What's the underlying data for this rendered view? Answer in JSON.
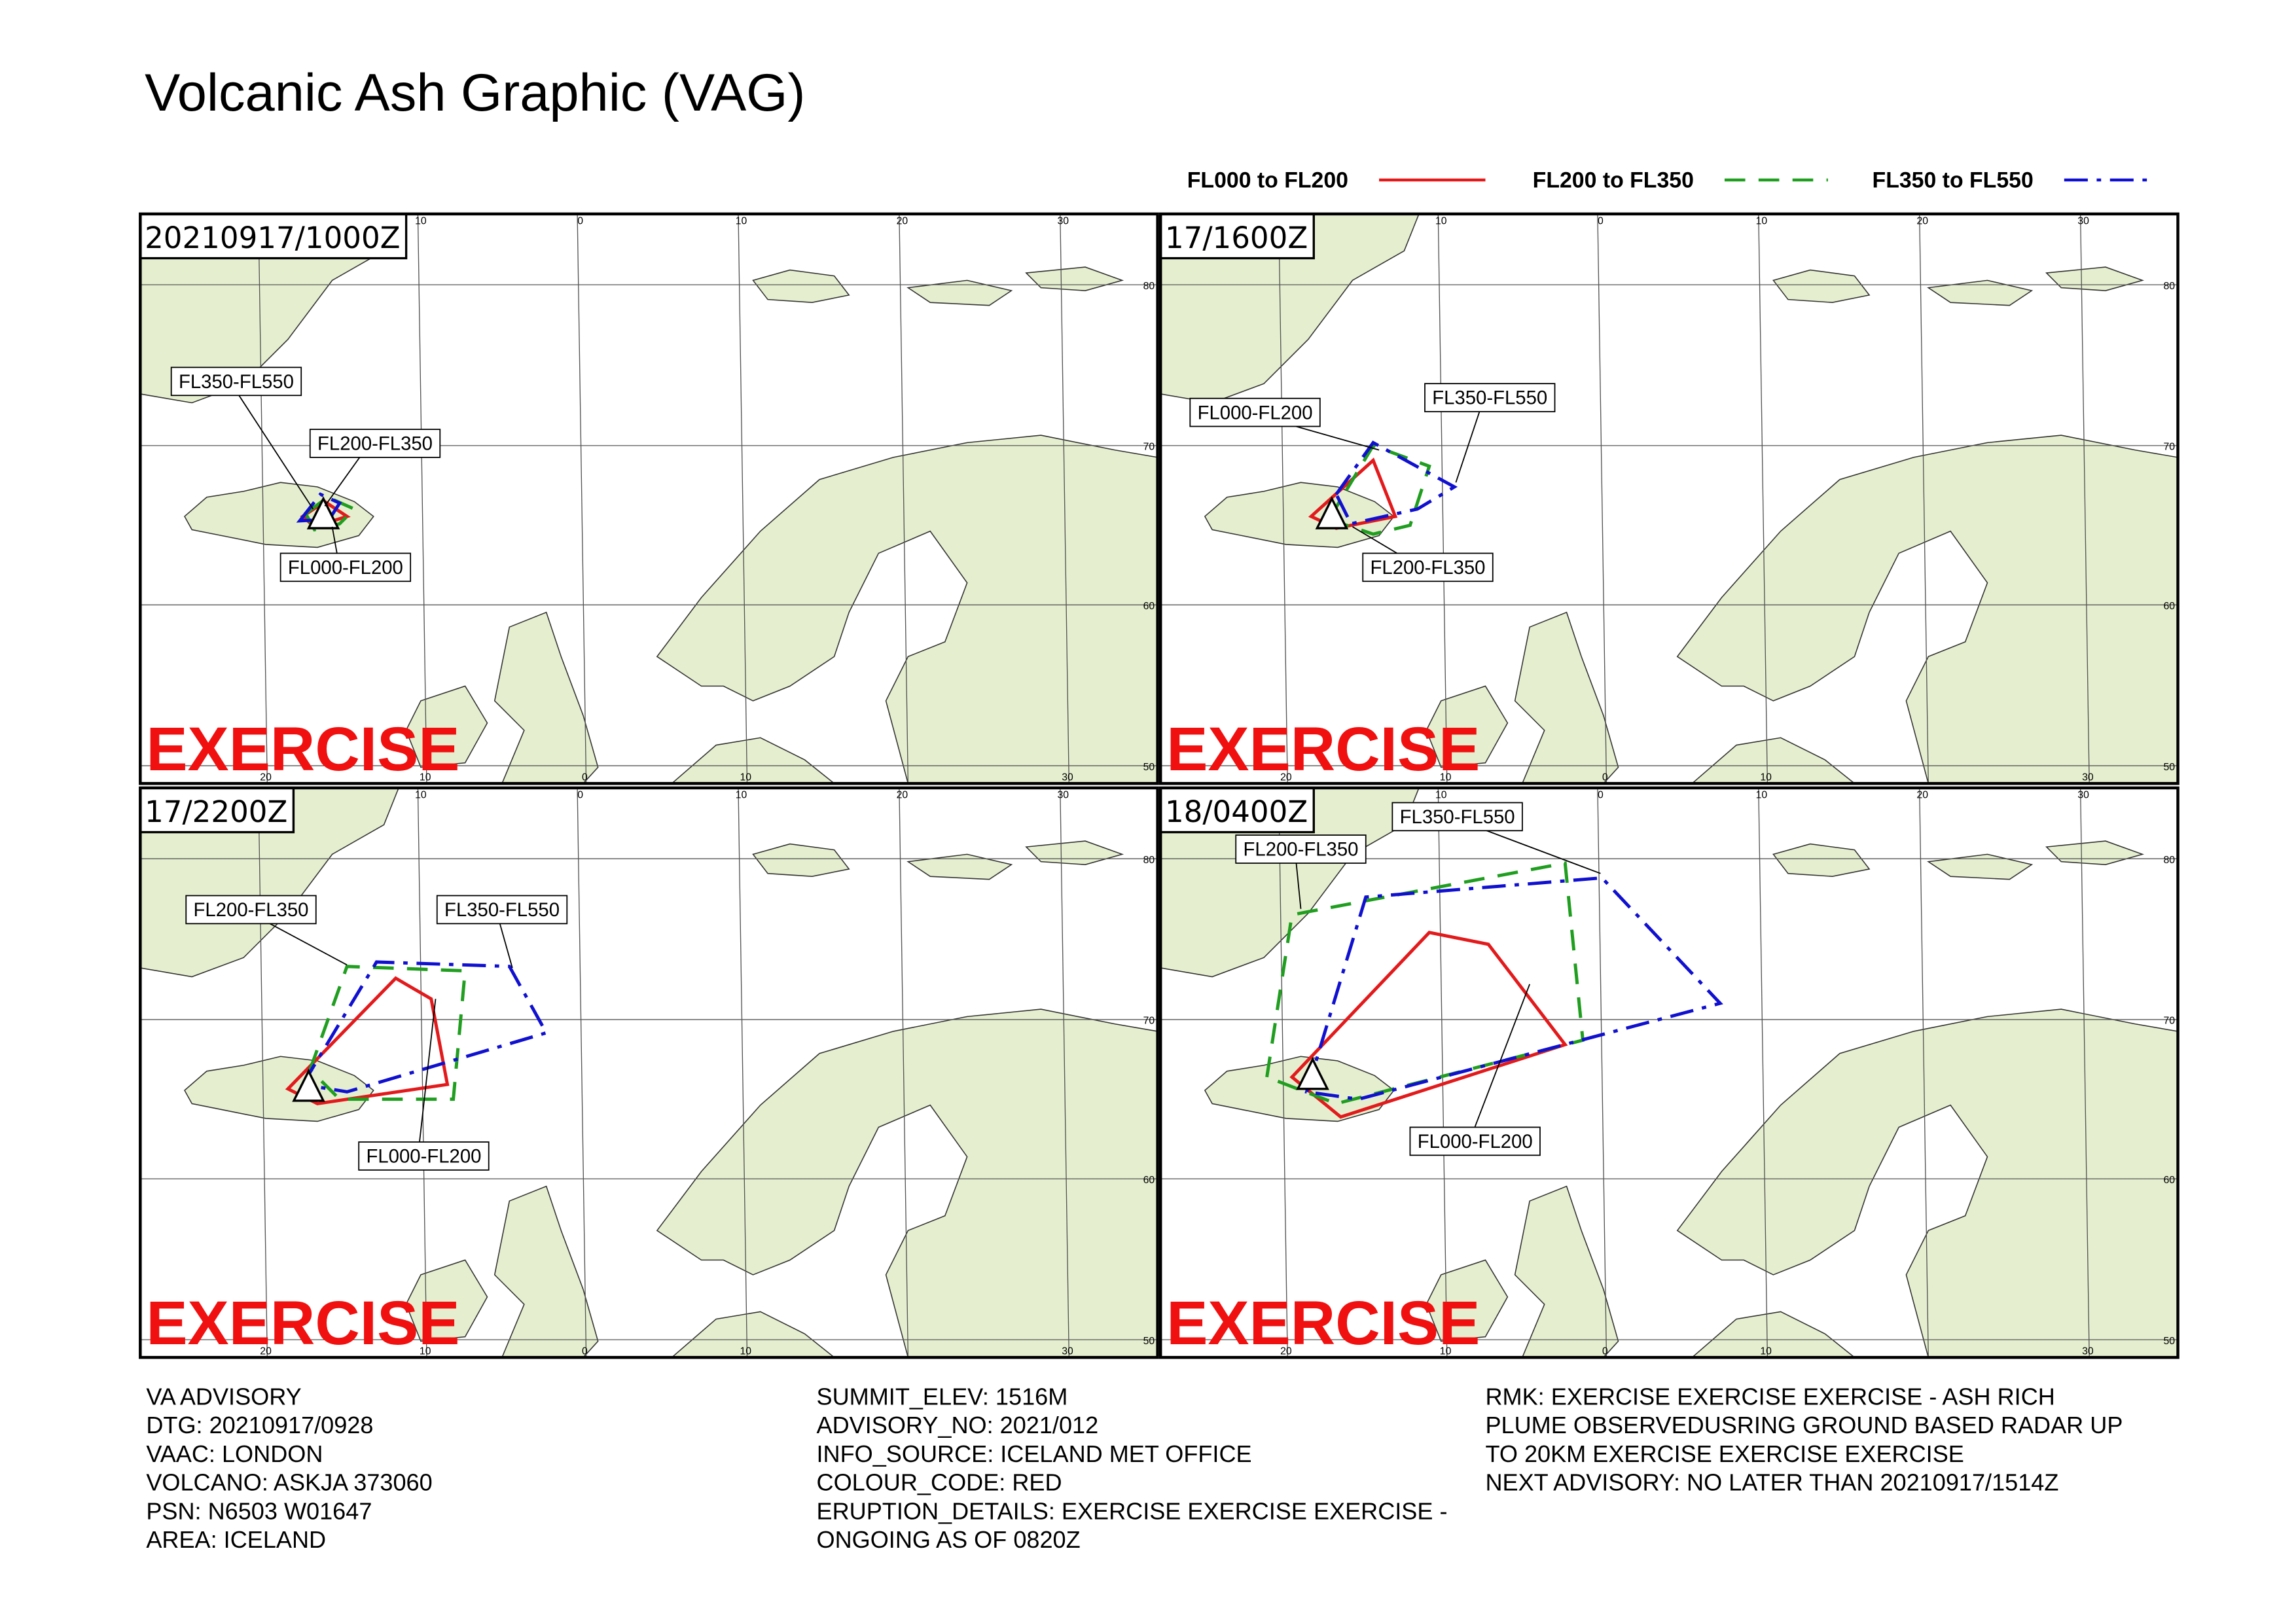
{
  "header": {
    "title": "Volcanic Ash Graphic (VAG)"
  },
  "legend": [
    {
      "name": "FL000 to FL200",
      "color": "#e31a1c",
      "dash": "none"
    },
    {
      "name": "FL200 to FL350",
      "color": "#1f9e1f",
      "dash": "14 9"
    },
    {
      "name": "FL350 to FL550",
      "color": "#1010d0",
      "dash": "16 6 3 6"
    }
  ],
  "grid": {
    "lon_top": [
      "10",
      "0",
      "10",
      "20",
      "30"
    ],
    "lon_bottom": [
      "20",
      "10",
      "0",
      "10",
      "30"
    ],
    "lat": [
      "80",
      "70",
      "60",
      "50"
    ]
  },
  "panels": [
    {
      "time": "20210917/1000Z",
      "labels": [
        "FL350-FL550",
        "FL200-FL350",
        "FL000-FL200"
      ],
      "watermark": "EXERCISE"
    },
    {
      "time": "17/1600Z",
      "labels": [
        "FL000-FL200",
        "FL350-FL550",
        "FL200-FL350"
      ],
      "watermark": "EXERCISE"
    },
    {
      "time": "17/2200Z",
      "labels": [
        "FL200-FL350",
        "FL350-FL550",
        "FL000-FL200"
      ],
      "watermark": "EXERCISE"
    },
    {
      "time": "18/0400Z",
      "labels": [
        "FL200-FL350",
        "FL350-FL550",
        "FL000-FL200"
      ],
      "watermark": "EXERCISE"
    }
  ],
  "footer": {
    "columns": [
      [
        "VA ADVISORY",
        "DTG: 20210917/0928",
        "VAAC: LONDON",
        "VOLCANO: ASKJA 373060",
        "PSN: N6503 W01647",
        "AREA: ICELAND"
      ],
      [
        "SUMMIT_ELEV: 1516M",
        "ADVISORY_NO: 2021/012",
        "INFO_SOURCE: ICELAND MET OFFICE",
        "COLOUR_CODE: RED",
        "ERUPTION_DETAILS: EXERCISE EXERCISE EXERCISE -",
        "ONGOING AS OF 0820Z"
      ],
      [
        "RMK: EXERCISE EXERCISE EXERCISE - ASH RICH",
        "PLUME OBSERVEDUSRING GROUND BASED RADAR UP",
        "TO 20KM EXERCISE EXERCISE EXERCISE",
        "NEXT ADVISORY: NO LATER THAN 20210917/1514Z"
      ]
    ]
  }
}
